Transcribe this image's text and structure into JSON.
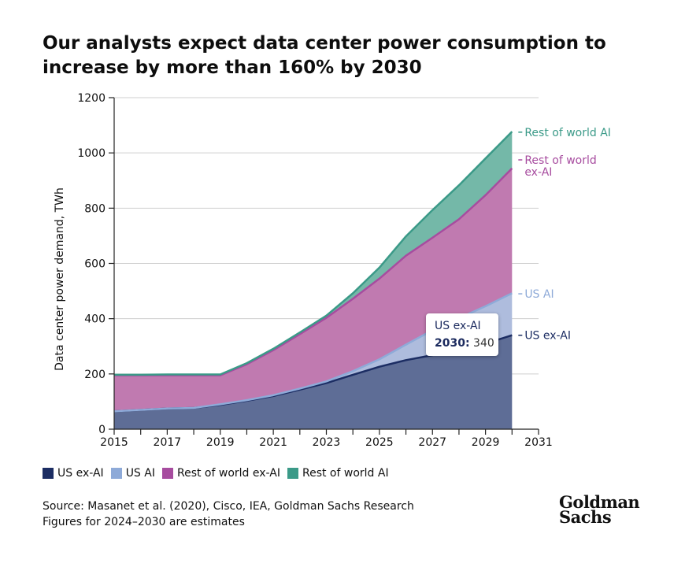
{
  "title": "Our analysts expect data center power consumption to increase by more than 160% by 2030",
  "legend": [
    {
      "label": "US ex-AI",
      "color": "#1c2d63"
    },
    {
      "label": "US AI",
      "color": "#8eaad8"
    },
    {
      "label": "Rest of world ex-AI",
      "color": "#a74c9f"
    },
    {
      "label": "Rest of world AI",
      "color": "#3b9a88"
    }
  ],
  "source_lines": [
    "Source: Masanet et al. (2020), Cisco, IEA, Goldman Sachs Research",
    "Figures for 2024–2030 are estimates"
  ],
  "logo": {
    "line1": "Goldman",
    "line2": "Sachs"
  },
  "tooltip": {
    "series": "US ex-AI",
    "year_label": "2030:",
    "value": "340"
  },
  "chart_data": {
    "type": "area",
    "stacked": true,
    "ylabel": "Data center power demand, TWh",
    "xlabel": "",
    "xlim": [
      2015,
      2031
    ],
    "ylim": [
      0,
      1200
    ],
    "x_ticks": [
      2015,
      2017,
      2019,
      2021,
      2023,
      2025,
      2027,
      2029,
      2031
    ],
    "y_ticks": [
      0,
      200,
      400,
      600,
      800,
      1000,
      1200
    ],
    "grid": true,
    "x": [
      2015,
      2016,
      2017,
      2018,
      2019,
      2020,
      2021,
      2022,
      2023,
      2024,
      2025,
      2026,
      2027,
      2028,
      2029,
      2030
    ],
    "series": [
      {
        "name": "US ex-AI",
        "color": "#1c2d63",
        "fill": "#5e6d96",
        "values": [
          65,
          70,
          75,
          77,
          88,
          103,
          120,
          143,
          167,
          197,
          226,
          250,
          268,
          290,
          310,
          340
        ]
      },
      {
        "name": "US AI",
        "color": "#8eaad8",
        "fill": "#aebcdd",
        "values": [
          0,
          0,
          0,
          0,
          2,
          2,
          3,
          4,
          6,
          13,
          27,
          56,
          90,
          112,
          135,
          152
        ]
      },
      {
        "name": "Rest of world ex-AI",
        "color": "#a74c9f",
        "fill": "#c07ab0",
        "values": [
          130,
          125,
          120,
          118,
          105,
          130,
          163,
          197,
          230,
          262,
          292,
          322,
          335,
          358,
          402,
          452
        ]
      },
      {
        "name": "Rest of world AI",
        "color": "#3b9a88",
        "fill": "#74b8a8",
        "values": [
          2,
          2,
          3,
          3,
          3,
          4,
          5,
          6,
          8,
          20,
          40,
          70,
          100,
          123,
          133,
          133
        ]
      }
    ],
    "end_labels": [
      {
        "series": "Rest of world AI",
        "lines": [
          "Rest of world AI"
        ]
      },
      {
        "series": "Rest of world ex-AI",
        "lines": [
          "Rest of world",
          "ex-AI"
        ]
      },
      {
        "series": "US AI",
        "lines": [
          "US AI"
        ]
      },
      {
        "series": "US ex-AI",
        "lines": [
          "US ex-AI"
        ]
      }
    ]
  }
}
